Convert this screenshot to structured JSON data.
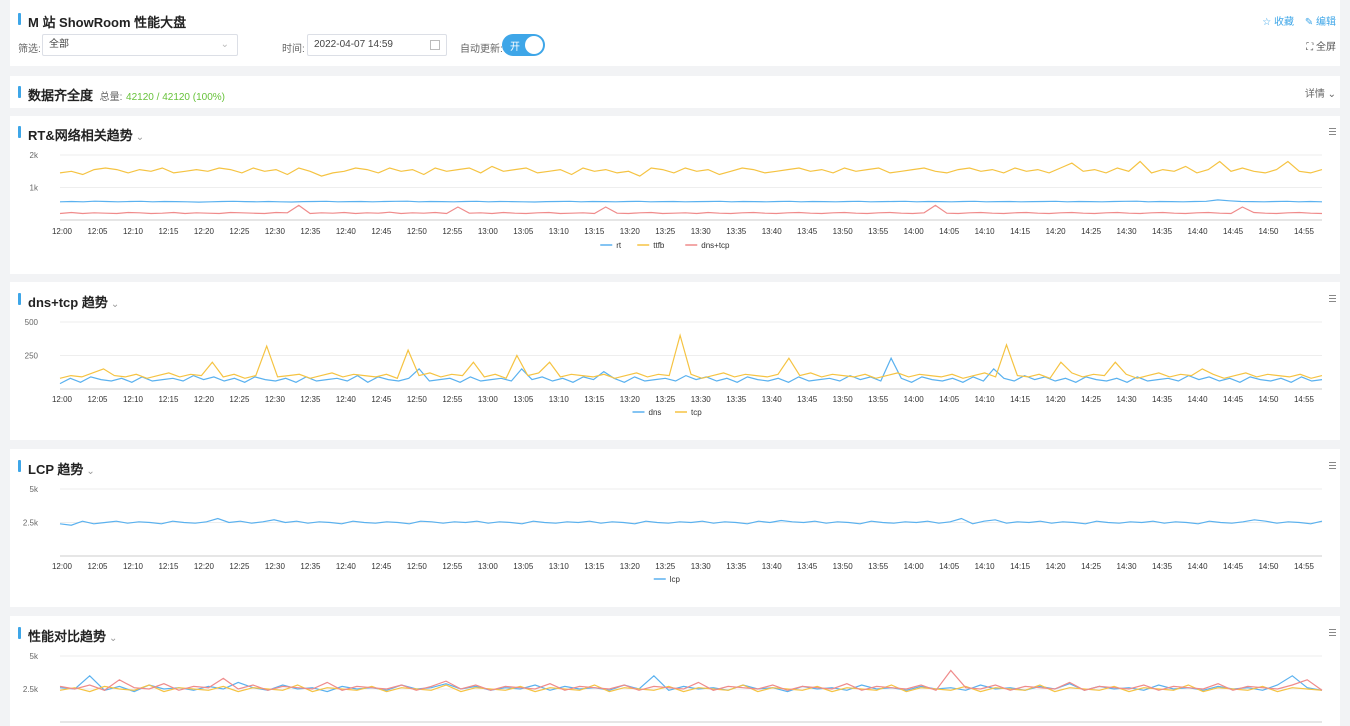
{
  "header": {
    "title": "M 站 ShowRoom 性能大盘",
    "filter_label": "筛选:",
    "filter_value": "全部",
    "time_label": "时间:",
    "time_value": "2022-04-07 14:59",
    "auto_update_label": "自动更新:",
    "toggle_text": "开",
    "favorite": "收藏",
    "edit": "编辑",
    "fullscreen": "全屏"
  },
  "completeness": {
    "title": "数据齐全度",
    "total_label": "总量:",
    "total_value": "42120 / 42120 (100%)",
    "detail": "详情"
  },
  "colors": {
    "blue": "#5ab1ef",
    "yellow": "#f5c342",
    "red": "#ef8b8b",
    "accent": "#3ea6e8"
  },
  "time_ticks": [
    "12:00",
    "12:05",
    "12:10",
    "12:15",
    "12:20",
    "12:25",
    "12:30",
    "12:35",
    "12:40",
    "12:45",
    "12:50",
    "12:55",
    "13:00",
    "13:05",
    "13:10",
    "13:15",
    "13:20",
    "13:25",
    "13:30",
    "13:35",
    "13:40",
    "13:45",
    "13:50",
    "13:55",
    "14:00",
    "14:05",
    "14:10",
    "14:15",
    "14:20",
    "14:25",
    "14:30",
    "14:35",
    "14:40",
    "14:45",
    "14:50",
    "14:55"
  ],
  "chart_data": [
    {
      "type": "line",
      "title": "RT&网络相关趋势",
      "ylim": [
        0,
        2000
      ],
      "yticks": [
        "1k",
        "2k"
      ],
      "series": [
        {
          "name": "rt",
          "color": "#5ab1ef",
          "values": [
            560,
            570,
            560,
            580,
            570,
            560,
            570,
            575,
            560,
            570,
            565,
            560,
            550,
            560,
            570,
            575,
            565,
            560,
            570,
            560,
            555,
            565,
            570,
            575,
            560,
            565,
            570,
            560,
            570,
            575,
            580,
            560,
            570,
            565,
            560,
            570,
            575,
            560,
            570,
            565,
            560,
            555,
            565,
            570,
            575,
            560,
            570,
            565,
            560,
            570,
            575,
            560,
            565,
            570,
            560,
            565,
            570,
            575,
            560,
            570,
            565,
            560,
            570,
            575,
            560,
            570,
            565,
            560,
            570,
            575,
            560,
            565,
            570,
            575,
            560,
            570,
            565,
            560,
            570,
            575,
            560,
            565,
            570,
            560,
            565,
            570,
            575,
            560,
            570,
            565,
            560,
            570,
            575,
            580,
            560,
            570,
            565,
            560,
            570,
            575,
            620,
            590,
            570,
            565,
            560,
            570,
            575,
            560,
            570,
            560
          ]
        },
        {
          "name": "ttfb",
          "color": "#f5c342",
          "values": [
            1450,
            1500,
            1400,
            1550,
            1600,
            1550,
            1450,
            1550,
            1500,
            1600,
            1450,
            1500,
            1550,
            1500,
            1600,
            1550,
            1450,
            1600,
            1500,
            1550,
            1400,
            1600,
            1500,
            1350,
            1450,
            1500,
            1600,
            1550,
            1450,
            1600,
            1500,
            1550,
            1400,
            1600,
            1500,
            1550,
            1600,
            1450,
            1650,
            1500,
            1550,
            1600,
            1450,
            1500,
            1550,
            1400,
            1600,
            1500,
            1550,
            1450,
            1500,
            1350,
            1600,
            1550,
            1450,
            1600,
            1500,
            1550,
            1400,
            1500,
            1600,
            1550,
            1450,
            1500,
            1550,
            1600,
            1500,
            1550,
            1450,
            1600,
            1500,
            1550,
            1600,
            1450,
            1500,
            1550,
            1600,
            1500,
            1450,
            1550,
            1600,
            1500,
            1550,
            1450,
            1600,
            1500,
            1550,
            1450,
            1600,
            1750,
            1500,
            1550,
            1450,
            1600,
            1500,
            1800,
            1450,
            1550,
            1500,
            1650,
            1450,
            1550,
            1800,
            1500,
            1600,
            1500,
            1450,
            1550,
            1800,
            1500,
            1450,
            1550
          ]
        },
        {
          "name": "dns+tcp",
          "color": "#ef8b8b",
          "values": [
            200,
            230,
            200,
            220,
            210,
            200,
            230,
            220,
            200,
            210,
            230,
            200,
            220,
            210,
            200,
            230,
            220,
            210,
            200,
            230,
            220,
            450,
            200,
            220,
            210,
            230,
            200,
            220,
            210,
            240,
            200,
            220,
            210,
            230,
            200,
            400,
            210,
            220,
            200,
            230,
            210,
            200,
            220,
            230,
            200,
            210,
            220,
            200,
            400,
            210,
            200,
            220,
            230,
            200,
            210,
            220,
            200,
            230,
            210,
            200,
            220,
            230,
            210,
            200,
            220,
            230,
            210,
            200,
            220,
            230,
            210,
            200,
            220,
            230,
            210,
            200,
            220,
            450,
            210,
            200,
            220,
            230,
            210,
            200,
            220,
            230,
            210,
            200,
            220,
            230,
            210,
            200,
            220,
            230,
            210,
            200,
            220,
            230,
            210,
            200,
            220,
            230,
            210,
            200,
            400,
            230,
            210,
            200,
            220,
            230,
            210,
            200
          ]
        }
      ]
    },
    {
      "type": "line",
      "title": "dns+tcp 趋势",
      "ylim": [
        0,
        500
      ],
      "yticks": [
        "250",
        "500"
      ],
      "series": [
        {
          "name": "dns",
          "color": "#5ab1ef",
          "values": [
            40,
            80,
            50,
            90,
            70,
            60,
            80,
            50,
            90,
            60,
            70,
            80,
            60,
            100,
            70,
            90,
            60,
            80,
            50,
            90,
            70,
            60,
            80,
            50,
            90,
            60,
            70,
            80,
            60,
            100,
            50,
            90,
            70,
            60,
            80,
            150,
            60,
            70,
            80,
            50,
            90,
            60,
            70,
            80,
            60,
            150,
            70,
            90,
            60,
            80,
            50,
            90,
            70,
            130,
            80,
            50,
            90,
            60,
            70,
            80,
            60,
            100,
            70,
            90,
            60,
            80,
            50,
            90,
            70,
            60,
            80,
            50,
            90,
            60,
            70,
            80,
            60,
            100,
            70,
            90,
            60,
            230,
            80,
            50,
            90,
            70,
            60,
            80,
            50,
            90,
            60,
            150,
            80,
            60,
            100,
            70,
            90,
            60,
            80,
            50,
            90,
            70,
            60,
            80,
            50,
            90,
            60,
            70,
            80,
            60,
            100,
            70,
            90,
            60,
            80,
            50,
            90,
            70,
            60,
            80,
            50,
            90,
            60,
            70
          ]
        },
        {
          "name": "tcp",
          "color": "#f5c342",
          "values": [
            80,
            100,
            90,
            120,
            150,
            100,
            90,
            110,
            80,
            100,
            120,
            90,
            110,
            100,
            200,
            90,
            110,
            80,
            100,
            320,
            90,
            100,
            110,
            80,
            100,
            120,
            90,
            110,
            100,
            90,
            110,
            80,
            290,
            100,
            120,
            90,
            110,
            100,
            200,
            90,
            110,
            80,
            250,
            100,
            120,
            200,
            90,
            110,
            100,
            90,
            110,
            80,
            100,
            120,
            90,
            110,
            100,
            400,
            110,
            80,
            100,
            120,
            90,
            110,
            100,
            90,
            110,
            230,
            100,
            120,
            90,
            110,
            100,
            90,
            110,
            80,
            100,
            120,
            90,
            110,
            100,
            90,
            110,
            80,
            100,
            120,
            90,
            330,
            100,
            90,
            110,
            80,
            200,
            120,
            90,
            110,
            100,
            200,
            110,
            80,
            100,
            120,
            90,
            110,
            100,
            150,
            110,
            80,
            100,
            120,
            90,
            110,
            100,
            90,
            110,
            80,
            100
          ]
        }
      ]
    },
    {
      "type": "line",
      "title": "LCP 趋势",
      "ylim": [
        0,
        5000
      ],
      "yticks": [
        "2.5k",
        "5k"
      ],
      "series": [
        {
          "name": "lcp",
          "color": "#5ab1ef",
          "values": [
            2400,
            2300,
            2600,
            2400,
            2500,
            2600,
            2450,
            2550,
            2500,
            2400,
            2600,
            2500,
            2450,
            2550,
            2800,
            2500,
            2600,
            2450,
            2550,
            2700,
            2500,
            2600,
            2450,
            2550,
            2500,
            2400,
            2600,
            2500,
            2450,
            2550,
            2500,
            2400,
            2600,
            2550,
            2450,
            2550,
            2500,
            2600,
            2450,
            2550,
            2500,
            2400,
            2600,
            2500,
            2450,
            2550,
            2500,
            2600,
            2450,
            2550,
            2500,
            2400,
            2600,
            2500,
            2450,
            2550,
            2500,
            2600,
            2450,
            2550,
            2500,
            2400,
            2600,
            2500,
            2650,
            2550,
            2500,
            2600,
            2450,
            2550,
            2500,
            2400,
            2600,
            2500,
            2450,
            2550,
            2500,
            2600,
            2450,
            2550,
            2800,
            2400,
            2600,
            2700,
            2450,
            2550,
            2500,
            2600,
            2450,
            2550,
            2500,
            2400,
            2600,
            2500,
            2450,
            2550,
            2500,
            2600,
            2450,
            2550,
            2500,
            2400,
            2600,
            2500,
            2450,
            2550,
            2700,
            2600,
            2450,
            2550,
            2500,
            2400,
            2600
          ]
        }
      ]
    },
    {
      "type": "line",
      "title": "性能对比趋势",
      "ylim": [
        0,
        5000
      ],
      "yticks": [
        "2.5k",
        "5k"
      ],
      "series": [
        {
          "name": "",
          "color": "#5ab1ef",
          "values": [
            2600,
            2500,
            3500,
            2400,
            2700,
            2300,
            2800,
            2500,
            2600,
            2400,
            2700,
            2500,
            3000,
            2600,
            2400,
            2800,
            2500,
            2600,
            2300,
            2700,
            2500,
            2600,
            2400,
            2800,
            2500,
            2600,
            2900,
            2500,
            2700,
            2400,
            2600,
            2500,
            2800,
            2400,
            2700,
            2500,
            2600,
            2400,
            2800,
            2500,
            3500,
            2400,
            2700,
            2500,
            2600,
            2400,
            2800,
            2500,
            2600,
            2300,
            2700,
            2500,
            2600,
            2400,
            2800,
            2500,
            2600,
            2400,
            2700,
            2500,
            2600,
            2400,
            2800,
            2500,
            2600,
            2400,
            2700,
            2500,
            2900,
            2400,
            2700,
            2500,
            2600,
            2400,
            2800,
            2500,
            2600,
            2400,
            2700,
            2500,
            2600,
            2400,
            2800,
            3500,
            2600,
            2400
          ]
        },
        {
          "name": "",
          "color": "#f5c342",
          "values": [
            2400,
            2600,
            2300,
            2700,
            2500,
            2400,
            2800,
            2300,
            2600,
            2500,
            2400,
            2700,
            2300,
            2600,
            2500,
            2400,
            2800,
            2300,
            2600,
            2500,
            2400,
            2700,
            2300,
            2600,
            2500,
            2400,
            2800,
            2300,
            2600,
            2500,
            2400,
            2700,
            2300,
            2600,
            2500,
            2400,
            2800,
            2300,
            2600,
            2500,
            2400,
            2700,
            2300,
            2600,
            2500,
            2400,
            2800,
            2300,
            2600,
            2500,
            2400,
            2700,
            2300,
            2600,
            2500,
            2400,
            2800,
            2300,
            2600,
            2500,
            2400,
            2700,
            2300,
            2600,
            2500,
            2400,
            2800,
            2300,
            2600,
            2500,
            2400,
            2700,
            2300,
            2600,
            2500,
            2400,
            2800,
            2300,
            2600,
            2500,
            2400,
            2700,
            2300,
            2600,
            2500,
            2400
          ]
        },
        {
          "name": "",
          "color": "#ef8b8b",
          "values": [
            2700,
            2500,
            2800,
            2400,
            3200,
            2600,
            2500,
            2900,
            2400,
            2700,
            2600,
            3300,
            2500,
            2800,
            2400,
            2700,
            2600,
            2500,
            3000,
            2400,
            2700,
            2600,
            2500,
            2800,
            2400,
            2700,
            3100,
            2500,
            2800,
            2400,
            2700,
            2600,
            2500,
            2900,
            2400,
            2700,
            2600,
            2500,
            2800,
            2400,
            2700,
            2600,
            2500,
            3000,
            2400,
            2700,
            2600,
            2500,
            2800,
            2400,
            2700,
            2600,
            2500,
            2900,
            2400,
            2700,
            2600,
            2500,
            2800,
            2400,
            3900,
            2600,
            2500,
            2800,
            2400,
            2700,
            2600,
            2500,
            3000,
            2400,
            2700,
            2600,
            2500,
            2800,
            2400,
            2700,
            2600,
            2500,
            2900,
            2400,
            2700,
            2600,
            2500,
            2800,
            3200,
            2400
          ]
        }
      ]
    }
  ]
}
